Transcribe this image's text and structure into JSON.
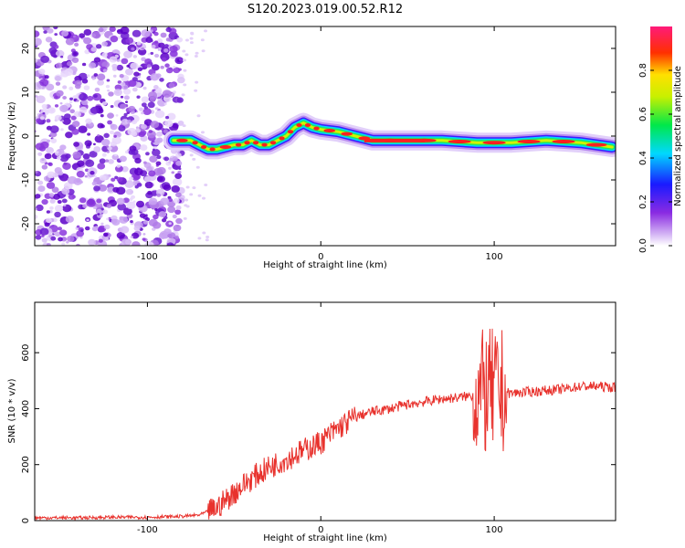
{
  "title": "S120.2023.019.00.52.R12",
  "chart_data": [
    {
      "type": "heatmap",
      "title": "S120.2023.019.00.52.R12",
      "xlabel": "Height of straight line (km)",
      "ylabel": "Frequency (Hz)",
      "xlim": [
        -165,
        170
      ],
      "ylim": [
        -25,
        25
      ],
      "xticks": [
        -100,
        0,
        100
      ],
      "yticks": [
        -20,
        -10,
        0,
        10,
        20
      ],
      "colorbar": {
        "label": "Normalized spectral amplitude",
        "range": [
          0,
          1
        ],
        "ticks": [
          0.0,
          0.2,
          0.4,
          0.6,
          0.8
        ]
      },
      "ridge": {
        "x": [
          -85,
          -75,
          -70,
          -65,
          -60,
          -50,
          -45,
          -40,
          -35,
          -30,
          -25,
          -20,
          -15,
          -10,
          -5,
          0,
          10,
          20,
          30,
          50,
          70,
          90,
          110,
          130,
          150,
          168
        ],
        "y": [
          -1,
          -1,
          -2,
          -3,
          -3,
          -2,
          -2,
          -1,
          -2,
          -2,
          -1,
          0,
          2,
          3,
          2,
          1.5,
          1,
          0,
          -1,
          -1,
          -1,
          -1.5,
          -1.5,
          -1,
          -1.5,
          -2.5
        ]
      }
    },
    {
      "type": "line",
      "title": "",
      "xlabel": "Height of straight line (km)",
      "ylabel": "SNR (10 * v/v)",
      "xlim": [
        -165,
        170
      ],
      "ylim": [
        0,
        780
      ],
      "xticks": [
        -100,
        0,
        100
      ],
      "yticks": [
        0,
        200,
        400,
        600
      ],
      "color": "#e8322d",
      "series": [
        {
          "x": [
            -165,
            -140,
            -120,
            -100,
            -80,
            -70,
            -60,
            -50,
            -40,
            -30,
            -20,
            -10,
            0,
            10,
            20,
            30,
            40,
            50,
            60,
            70,
            80,
            90,
            100,
            110,
            120,
            130,
            140,
            150,
            160,
            170
          ],
          "values": [
            10,
            10,
            12,
            12,
            15,
            20,
            45,
            100,
            150,
            190,
            220,
            250,
            280,
            330,
            370,
            390,
            400,
            415,
            425,
            435,
            440,
            450,
            460,
            455,
            460,
            465,
            470,
            480,
            480,
            475
          ]
        }
      ]
    }
  ]
}
